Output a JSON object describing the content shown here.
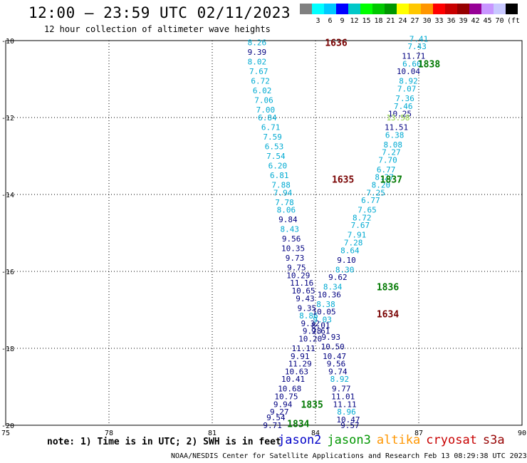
{
  "title": "12:00 — 23:59 UTC 02/11/2023",
  "subtitle": "12 hour collection of altimeter wave heights",
  "color_scale": {
    "unit": "(ft)",
    "colors": [
      "#808080",
      "#00ffff",
      "#00c8ff",
      "#0000ff",
      "#00c8c8",
      "#00ff00",
      "#00c800",
      "#009600",
      "#ffff00",
      "#ffc800",
      "#ff9600",
      "#ff0000",
      "#c80000",
      "#960000",
      "#960096",
      "#c896ff",
      "#c8c8ff",
      "#000000"
    ],
    "labels": [
      "3",
      "6",
      "9",
      "12",
      "15",
      "18",
      "21",
      "24",
      "27",
      "30",
      "33",
      "36",
      "39",
      "42",
      "45",
      "70"
    ]
  },
  "note": "note: 1) Time is in UTC; 2) SWH is in feet",
  "satellites": [
    {
      "name": "jason2",
      "color": "#0000c8"
    },
    {
      "name": "jason3",
      "color": "#009600"
    },
    {
      "name": "altika",
      "color": "#ff9600"
    },
    {
      "name": "cryosat",
      "color": "#c80000"
    },
    {
      "name": "s3a",
      "color": "#960000"
    }
  ],
  "credit": "NOAA/NESDIS Center for Satellite Applications and Research   Feb 13 08:29:38 UTC 2023",
  "chart_data": {
    "type": "scatter",
    "xlim": [
      75,
      90
    ],
    "ylim": [
      -20,
      -10
    ],
    "x_ticks": [
      "75",
      "78",
      "81",
      "84",
      "87",
      "90"
    ],
    "y_ticks": [
      "-10",
      "-12",
      "-14",
      "-16",
      "-18",
      "-20"
    ],
    "grid": true,
    "colors": {
      "cyan": "#00aad2",
      "blue": "#0000b4",
      "navy": "#000080",
      "green": "#8cd23c",
      "dkgreen": "#007800",
      "maroon": "#780000"
    },
    "pass_labels": [
      {
        "text": "1636",
        "x": 84.6,
        "y": -10.05,
        "color": "maroon"
      },
      {
        "text": "1838",
        "x": 87.3,
        "y": -10.6,
        "color": "dkgreen"
      },
      {
        "text": "1635",
        "x": 84.8,
        "y": -13.6,
        "color": "maroon"
      },
      {
        "text": "1837",
        "x": 86.2,
        "y": -13.6,
        "color": "dkgreen"
      },
      {
        "text": "1836",
        "x": 86.1,
        "y": -16.4,
        "color": "dkgreen"
      },
      {
        "text": "1634",
        "x": 86.1,
        "y": -17.1,
        "color": "maroon"
      },
      {
        "text": "1835",
        "x": 83.9,
        "y": -19.45,
        "color": "dkgreen"
      },
      {
        "text": "1834",
        "x": 83.5,
        "y": -19.95,
        "color": "dkgreen"
      }
    ],
    "series": [
      {
        "name": "1636",
        "points": [
          {
            "x": 82.3,
            "y": -10.05,
            "v": "8.26",
            "c": "cyan"
          },
          {
            "x": 82.3,
            "y": -10.3,
            "v": "9.39",
            "c": "navy"
          },
          {
            "x": 82.3,
            "y": -10.55,
            "v": "8.02",
            "c": "cyan"
          },
          {
            "x": 82.35,
            "y": -10.8,
            "v": "7.67",
            "c": "cyan"
          },
          {
            "x": 82.4,
            "y": -11.05,
            "v": "6.72",
            "c": "cyan"
          },
          {
            "x": 82.45,
            "y": -11.3,
            "v": "6.02",
            "c": "cyan"
          },
          {
            "x": 82.5,
            "y": -11.55,
            "v": "7.06",
            "c": "cyan"
          },
          {
            "x": 82.55,
            "y": -11.8,
            "v": "7.00",
            "c": "cyan"
          },
          {
            "x": 82.6,
            "y": -12.0,
            "v": "6.84",
            "c": "cyan"
          }
        ]
      },
      {
        "name": "1635",
        "points": [
          {
            "x": 82.7,
            "y": -12.25,
            "v": "6.71",
            "c": "cyan"
          },
          {
            "x": 82.75,
            "y": -12.5,
            "v": "7.59",
            "c": "cyan"
          },
          {
            "x": 82.8,
            "y": -12.75,
            "v": "6.53",
            "c": "cyan"
          },
          {
            "x": 82.85,
            "y": -13.0,
            "v": "7.54",
            "c": "cyan"
          },
          {
            "x": 82.9,
            "y": -13.25,
            "v": "6.20",
            "c": "cyan"
          },
          {
            "x": 82.95,
            "y": -13.5,
            "v": "6.81",
            "c": "cyan"
          },
          {
            "x": 83.0,
            "y": -13.75,
            "v": "7.88",
            "c": "cyan"
          },
          {
            "x": 83.05,
            "y": -13.95,
            "v": "7.94",
            "c": "cyan"
          },
          {
            "x": 83.1,
            "y": -14.2,
            "v": "7.78",
            "c": "cyan"
          },
          {
            "x": 83.15,
            "y": -14.4,
            "v": "8.06",
            "c": "cyan"
          },
          {
            "x": 83.2,
            "y": -14.65,
            "v": "9.84",
            "c": "navy"
          },
          {
            "x": 83.25,
            "y": -14.9,
            "v": "8.43",
            "c": "cyan"
          },
          {
            "x": 83.3,
            "y": -15.15,
            "v": "9.56",
            "c": "navy"
          },
          {
            "x": 83.35,
            "y": -15.4,
            "v": "10.35",
            "c": "navy"
          },
          {
            "x": 83.4,
            "y": -15.65,
            "v": "9.73",
            "c": "navy"
          },
          {
            "x": 83.45,
            "y": -15.9,
            "v": "9.75",
            "c": "navy"
          },
          {
            "x": 83.5,
            "y": -16.1,
            "v": "10.29",
            "c": "navy"
          },
          {
            "x": 83.6,
            "y": -16.3,
            "v": "11.16",
            "c": "navy"
          },
          {
            "x": 83.65,
            "y": -16.5,
            "v": "10.65",
            "c": "navy"
          },
          {
            "x": 83.7,
            "y": -16.7,
            "v": "9.43",
            "c": "navy"
          },
          {
            "x": 83.75,
            "y": -16.95,
            "v": "9.35",
            "c": "navy"
          },
          {
            "x": 83.8,
            "y": -17.15,
            "v": "8.86",
            "c": "cyan"
          },
          {
            "x": 83.85,
            "y": -17.35,
            "v": "9.32",
            "c": "navy"
          },
          {
            "x": 83.9,
            "y": -17.55,
            "v": "9.28",
            "c": "navy"
          }
        ]
      },
      {
        "name": "1634",
        "points": [
          {
            "x": 83.85,
            "y": -17.75,
            "v": "10.20",
            "c": "navy"
          },
          {
            "x": 83.65,
            "y": -18.0,
            "v": "11.11",
            "c": "navy"
          },
          {
            "x": 83.55,
            "y": -18.2,
            "v": "9.91",
            "c": "navy"
          },
          {
            "x": 83.55,
            "y": -18.4,
            "v": "11.29",
            "c": "navy"
          },
          {
            "x": 83.45,
            "y": -18.6,
            "v": "10.63",
            "c": "navy"
          },
          {
            "x": 83.35,
            "y": -18.8,
            "v": "10.41",
            "c": "navy"
          },
          {
            "x": 83.25,
            "y": -19.05,
            "v": "10.68",
            "c": "navy"
          },
          {
            "x": 83.15,
            "y": -19.25,
            "v": "10.75",
            "c": "navy"
          },
          {
            "x": 83.05,
            "y": -19.45,
            "v": "9.94",
            "c": "navy"
          },
          {
            "x": 82.95,
            "y": -19.65,
            "v": "9.27",
            "c": "navy"
          },
          {
            "x": 82.85,
            "y": -19.8,
            "v": "9.54",
            "c": "navy"
          },
          {
            "x": 82.75,
            "y": -20.0,
            "v": "9.71",
            "c": "navy"
          }
        ]
      },
      {
        "name": "1838",
        "points": [
          {
            "x": 87.0,
            "y": -9.95,
            "v": "7.41",
            "c": "cyan"
          },
          {
            "x": 86.95,
            "y": -10.15,
            "v": "7.43",
            "c": "cyan"
          },
          {
            "x": 86.85,
            "y": -10.4,
            "v": "11.71",
            "c": "navy"
          },
          {
            "x": 86.8,
            "y": -10.6,
            "v": "6.60",
            "c": "cyan"
          },
          {
            "x": 86.7,
            "y": -10.8,
            "v": "10.04",
            "c": "navy"
          },
          {
            "x": 86.7,
            "y": -11.05,
            "v": "8.92",
            "c": "cyan"
          },
          {
            "x": 86.65,
            "y": -11.25,
            "v": "7.07",
            "c": "cyan"
          },
          {
            "x": 86.6,
            "y": -11.5,
            "v": "7.36",
            "c": "cyan"
          },
          {
            "x": 86.55,
            "y": -11.7,
            "v": "7.46",
            "c": "cyan"
          },
          {
            "x": 86.45,
            "y": -11.9,
            "v": "10.25",
            "c": "navy"
          },
          {
            "x": 86.4,
            "y": -12.0,
            "v": "13.58",
            "c": "green"
          }
        ]
      },
      {
        "name": "1837",
        "points": [
          {
            "x": 86.35,
            "y": -12.25,
            "v": "11.51",
            "c": "navy"
          },
          {
            "x": 86.3,
            "y": -12.45,
            "v": "6.38",
            "c": "cyan"
          },
          {
            "x": 86.25,
            "y": -12.7,
            "v": "8.08",
            "c": "cyan"
          },
          {
            "x": 86.2,
            "y": -12.9,
            "v": "7.27",
            "c": "cyan"
          },
          {
            "x": 86.1,
            "y": -13.1,
            "v": "7.70",
            "c": "cyan"
          },
          {
            "x": 86.05,
            "y": -13.35,
            "v": "6.77",
            "c": "cyan"
          },
          {
            "x": 86.0,
            "y": -13.55,
            "v": "8.27",
            "c": "cyan"
          },
          {
            "x": 85.9,
            "y": -13.75,
            "v": "8.20",
            "c": "cyan"
          },
          {
            "x": 85.75,
            "y": -13.95,
            "v": "7.25",
            "c": "cyan"
          },
          {
            "x": 85.6,
            "y": -14.15,
            "v": "6.77",
            "c": "cyan"
          },
          {
            "x": 85.5,
            "y": -14.4,
            "v": "7.65",
            "c": "cyan"
          },
          {
            "x": 85.35,
            "y": -14.6,
            "v": "8.72",
            "c": "cyan"
          },
          {
            "x": 85.3,
            "y": -14.8,
            "v": "7.67",
            "c": "cyan"
          },
          {
            "x": 85.2,
            "y": -15.05,
            "v": "7.91",
            "c": "cyan"
          },
          {
            "x": 85.1,
            "y": -15.25,
            "v": "7.28",
            "c": "cyan"
          },
          {
            "x": 85.0,
            "y": -15.45,
            "v": "8.64",
            "c": "cyan"
          },
          {
            "x": 84.9,
            "y": -15.7,
            "v": "9.10",
            "c": "navy"
          },
          {
            "x": 84.85,
            "y": -15.95,
            "v": "8.30",
            "c": "cyan"
          },
          {
            "x": 84.65,
            "y": -16.15,
            "v": "9.62",
            "c": "navy"
          },
          {
            "x": 84.5,
            "y": -16.4,
            "v": "8.34",
            "c": "cyan"
          }
        ]
      },
      {
        "name": "1836",
        "points": [
          {
            "x": 84.4,
            "y": -16.6,
            "v": "10.36",
            "c": "navy"
          },
          {
            "x": 84.3,
            "y": -16.85,
            "v": "8.38",
            "c": "cyan"
          },
          {
            "x": 84.25,
            "y": -17.05,
            "v": "10.05",
            "c": "navy"
          },
          {
            "x": 84.2,
            "y": -17.25,
            "v": "9.03",
            "c": "cyan"
          },
          {
            "x": 84.15,
            "y": -17.4,
            "v": "8.01",
            "c": "navy"
          },
          {
            "x": 84.15,
            "y": -17.55,
            "v": "9.61",
            "c": "navy"
          }
        ]
      },
      {
        "name": "1835",
        "points": [
          {
            "x": 84.45,
            "y": -17.7,
            "v": "9.93",
            "c": "navy"
          },
          {
            "x": 84.5,
            "y": -17.95,
            "v": "10.50",
            "c": "navy"
          },
          {
            "x": 84.55,
            "y": -18.2,
            "v": "10.47",
            "c": "navy"
          },
          {
            "x": 84.6,
            "y": -18.4,
            "v": "9.56",
            "c": "navy"
          },
          {
            "x": 84.65,
            "y": -18.6,
            "v": "9.74",
            "c": "navy"
          },
          {
            "x": 84.7,
            "y": -18.8,
            "v": "8.92",
            "c": "cyan"
          },
          {
            "x": 84.75,
            "y": -19.05,
            "v": "9.77",
            "c": "navy"
          },
          {
            "x": 84.8,
            "y": -19.25,
            "v": "11.01",
            "c": "navy"
          },
          {
            "x": 84.85,
            "y": -19.45,
            "v": "11.11",
            "c": "navy"
          },
          {
            "x": 84.9,
            "y": -19.65,
            "v": "8.96",
            "c": "cyan"
          },
          {
            "x": 84.95,
            "y": -19.85,
            "v": "10.47",
            "c": "navy"
          },
          {
            "x": 85.0,
            "y": -20.0,
            "v": "9.57",
            "c": "navy"
          }
        ]
      }
    ]
  }
}
